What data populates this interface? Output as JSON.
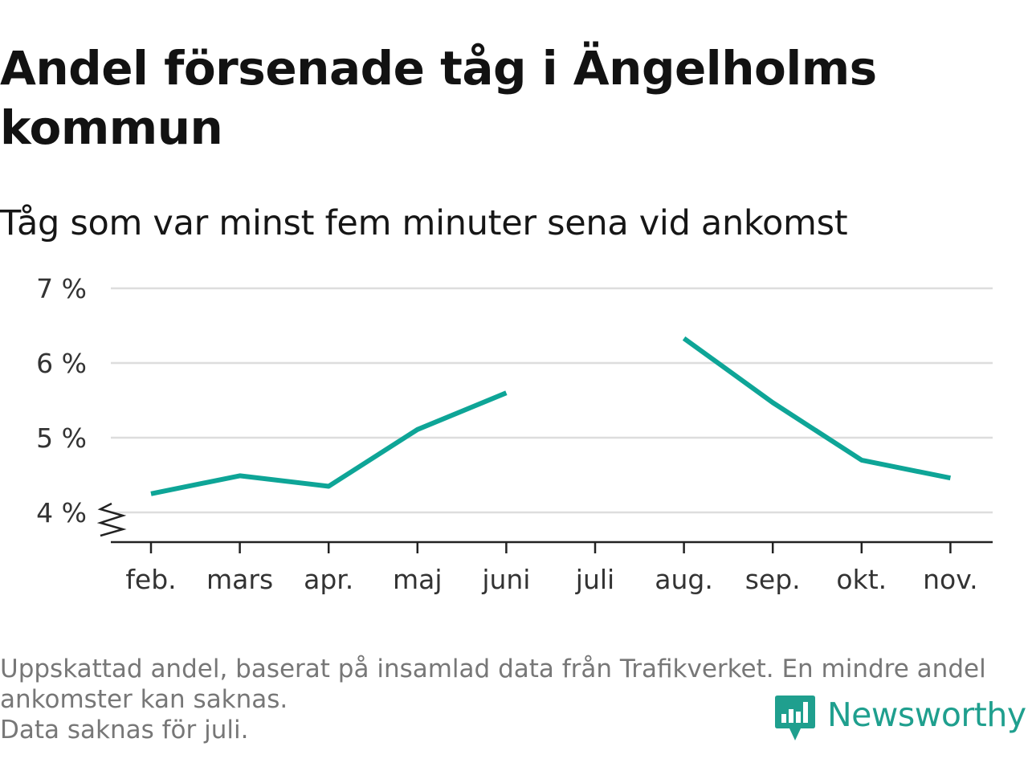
{
  "header": {
    "title": "Andel försenade tåg i Ängelholms kommun",
    "subtitle": "Tåg som var minst fem minuter sena vid ankomst"
  },
  "chart_data": {
    "type": "line",
    "categories": [
      "feb.",
      "mars",
      "apr.",
      "maj",
      "juni",
      "juli",
      "aug.",
      "sep.",
      "okt.",
      "nov."
    ],
    "series": [
      {
        "values": [
          4.25,
          4.49,
          4.35,
          5.11,
          5.6,
          null,
          6.33,
          5.47,
          4.7,
          4.46
        ],
        "color": "#0ea597"
      }
    ],
    "y_ticks": [
      4,
      5,
      6,
      7
    ],
    "y_tick_labels": [
      "4 %",
      "5 %",
      "6 %",
      "7 %"
    ],
    "ylim": [
      3.6,
      7
    ],
    "y_axis_break": true,
    "grid": true,
    "legend": "none"
  },
  "footnotes": {
    "line1": "Uppskattad andel, baserat på insamlad data från Trafikverket. En mindre andel",
    "line2": "ankomster kan saknas.",
    "line3": "Data saknas för juli."
  },
  "brand": {
    "name": "Newsworthy",
    "icon": "newsworthy-logo-icon",
    "color": "#1f9f8e"
  }
}
